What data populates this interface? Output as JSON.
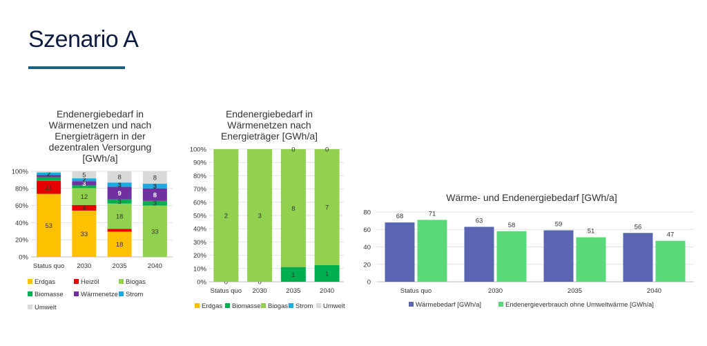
{
  "slide": {
    "title": "Szenario A"
  },
  "colors": {
    "Erdgas": "#ffc000",
    "Heizöl": "#e50000",
    "Biomasse": "#00b050",
    "Biogas": "#92d050",
    "Wärmenetze": "#7030a0",
    "Strom": "#1fa9e1",
    "Umwelt": "#d9d9d9",
    "Wärmebedarf": "#5b64b0",
    "Endenergieverbrauch": "#59d97a"
  },
  "chart_data": [
    {
      "type": "bar",
      "stacked": "percent",
      "title": "Endenergiebedarf in\nWärmenetzen und nach\nEnergieträgern in der\ndezentralen Versorgung\n[GWh/a]",
      "categories": [
        "Status quo",
        "2030",
        "2035",
        "2040"
      ],
      "ylim": [
        0,
        100
      ],
      "yticks": [
        "0%",
        "20%",
        "40%",
        "60%",
        "80%",
        "100%"
      ],
      "series": [
        {
          "name": "Erdgas",
          "values": [
            53,
            33,
            18,
            0
          ],
          "labels": [
            "53",
            "33",
            "18",
            ""
          ]
        },
        {
          "name": "Heizöl",
          "values": [
            11,
            4,
            2,
            0
          ],
          "labels": [
            "11",
            "4",
            "",
            ""
          ]
        },
        {
          "name": "Biogas",
          "values": [
            0,
            12,
            18,
            33
          ],
          "labels": [
            "",
            "12",
            "18",
            "33"
          ]
        },
        {
          "name": "Biomasse",
          "values": [
            3,
            2,
            3,
            3
          ],
          "labels": [
            "",
            "",
            "3",
            "3"
          ]
        },
        {
          "name": "Wärmenetze",
          "values": [
            2,
            3,
            9,
            8
          ],
          "labels": [
            "",
            "3",
            "9",
            "8"
          ]
        },
        {
          "name": "Strom",
          "values": [
            2,
            2,
            3,
            3
          ],
          "labels": [
            "2",
            "2",
            "3",
            "3"
          ]
        },
        {
          "name": "Umwelt",
          "values": [
            1,
            5,
            8,
            8
          ],
          "labels": [
            "",
            "5",
            "8",
            "8"
          ]
        }
      ],
      "legend": [
        "Erdgas",
        "Heizöl",
        "Biogas",
        "Biomasse",
        "Wärmenetze",
        "Strom",
        "Umwelt"
      ],
      "legend_position": "bottom"
    },
    {
      "type": "bar",
      "stacked": "percent",
      "title": "Endenergiebedarf in\nWärmenetzen nach\nEnergieträger [GWh/a]",
      "categories": [
        "Status quo",
        "2030",
        "2035",
        "2040"
      ],
      "ylim": [
        0,
        100
      ],
      "yticks": [
        "0%",
        "10%",
        "20%",
        "30%",
        "40%",
        "50%",
        "60%",
        "70%",
        "80%",
        "90%",
        "100%"
      ],
      "series": [
        {
          "name": "Erdgas",
          "values": [
            0,
            0,
            0,
            0
          ],
          "labels": [
            "",
            "",
            "",
            ""
          ]
        },
        {
          "name": "Biomasse",
          "values": [
            0,
            0,
            1,
            1
          ],
          "labels": [
            "0",
            "0",
            "1",
            "1"
          ]
        },
        {
          "name": "Biogas",
          "values": [
            2,
            3,
            8,
            7
          ],
          "labels": [
            "2",
            "3",
            "8",
            "7"
          ]
        },
        {
          "name": "Strom",
          "values": [
            0,
            0,
            0,
            0
          ],
          "labels": [
            "",
            "",
            "",
            ""
          ]
        },
        {
          "name": "Umwelt",
          "values": [
            0,
            0,
            0,
            0
          ],
          "labels": [
            "",
            "",
            "0",
            "0"
          ]
        }
      ],
      "legend": [
        "Erdgas",
        "Biomasse",
        "Biogas",
        "Strom",
        "Umwelt"
      ],
      "legend_position": "bottom"
    },
    {
      "type": "bar",
      "title": "Wärme- und Endenergiebedarf [GWh/a]",
      "categories": [
        "Status quo",
        "2030",
        "2035",
        "2040"
      ],
      "ylim": [
        0,
        80
      ],
      "yticks": [
        "0",
        "20",
        "40",
        "60",
        "80"
      ],
      "series": [
        {
          "name": "Wärmebedarf [GWh/a]",
          "values": [
            68,
            63,
            59,
            56
          ]
        },
        {
          "name": "Endenergieverbrauch ohne Umweltwärme [GWh/a]",
          "values": [
            71,
            58,
            51,
            47
          ]
        }
      ],
      "legend_position": "bottom"
    }
  ]
}
